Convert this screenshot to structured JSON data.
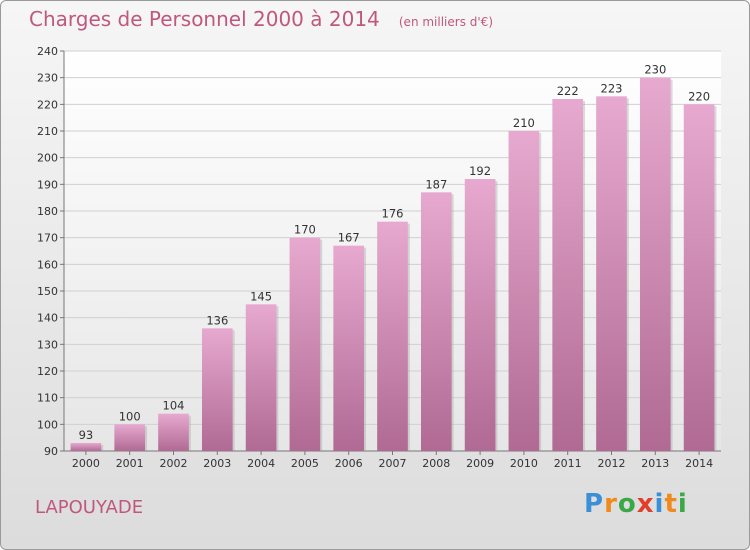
{
  "title": "Charges de Personnel 2000 à 2014",
  "subtitle": "(en milliers d'€)",
  "commune": "LAPOUYADE",
  "logo": {
    "letters": [
      {
        "ch": "P",
        "color": "#3a8fd6"
      },
      {
        "ch": "r",
        "color": "#f08a1c"
      },
      {
        "ch": "o",
        "color": "#3aa845"
      },
      {
        "ch": "x",
        "color": "#e0402a"
      },
      {
        "ch": "i",
        "color": "#3a8fd6"
      },
      {
        "ch": "t",
        "color": "#f08a1c"
      },
      {
        "ch": "i",
        "color": "#3aa845"
      }
    ]
  },
  "colors": {
    "bar_top": "#e7a9cf",
    "bar_bottom": "#b06a93",
    "title": "#c0587e"
  },
  "chart_data": {
    "type": "bar",
    "title": "Charges de Personnel 2000 à 2014",
    "subtitle": "(en milliers d'€)",
    "categories": [
      "2000",
      "2001",
      "2002",
      "2003",
      "2004",
      "2005",
      "2006",
      "2007",
      "2008",
      "2009",
      "2010",
      "2011",
      "2012",
      "2013",
      "2014"
    ],
    "values": [
      93,
      100,
      104,
      136,
      145,
      170,
      167,
      176,
      187,
      192,
      210,
      222,
      223,
      230,
      220
    ],
    "ylim": [
      90,
      240
    ],
    "yticks": [
      90,
      100,
      110,
      120,
      130,
      140,
      150,
      160,
      170,
      180,
      190,
      200,
      210,
      220,
      230,
      240
    ],
    "grid": true,
    "legend": "none"
  }
}
